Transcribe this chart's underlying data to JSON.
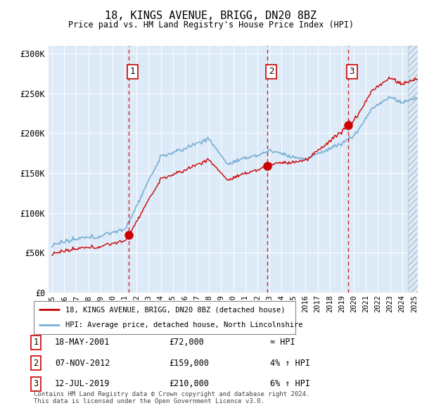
{
  "title": "18, KINGS AVENUE, BRIGG, DN20 8BZ",
  "subtitle": "Price paid vs. HM Land Registry's House Price Index (HPI)",
  "ylabel_ticks": [
    "£0",
    "£50K",
    "£100K",
    "£150K",
    "£200K",
    "£250K",
    "£300K"
  ],
  "ytick_values": [
    0,
    50000,
    100000,
    150000,
    200000,
    250000,
    300000
  ],
  "ylim": [
    0,
    310000
  ],
  "xlim_start": 1994.7,
  "xlim_end": 2025.3,
  "sale_dates": [
    2001.37,
    2012.85,
    2019.53
  ],
  "sale_prices": [
    72000,
    159000,
    210000
  ],
  "sale_labels": [
    "1",
    "2",
    "3"
  ],
  "sale_info": [
    [
      "1",
      "18-MAY-2001",
      "£72,000",
      "≈ HPI"
    ],
    [
      "2",
      "07-NOV-2012",
      "£159,000",
      "4% ↑ HPI"
    ],
    [
      "3",
      "12-JUL-2019",
      "£210,000",
      "6% ↑ HPI"
    ]
  ],
  "legend_line1": "18, KINGS AVENUE, BRIGG, DN20 8BZ (detached house)",
  "legend_line2": "HPI: Average price, detached house, North Lincolnshire",
  "footer": "Contains HM Land Registry data © Crown copyright and database right 2024.\nThis data is licensed under the Open Government Licence v3.0.",
  "hpi_color": "#7aafd4",
  "price_color": "#cc0000",
  "bg_color": "#ddeaf7",
  "grid_color": "#ffffff",
  "dashed_color": "#cc0000",
  "hatch_start": 2024.5
}
